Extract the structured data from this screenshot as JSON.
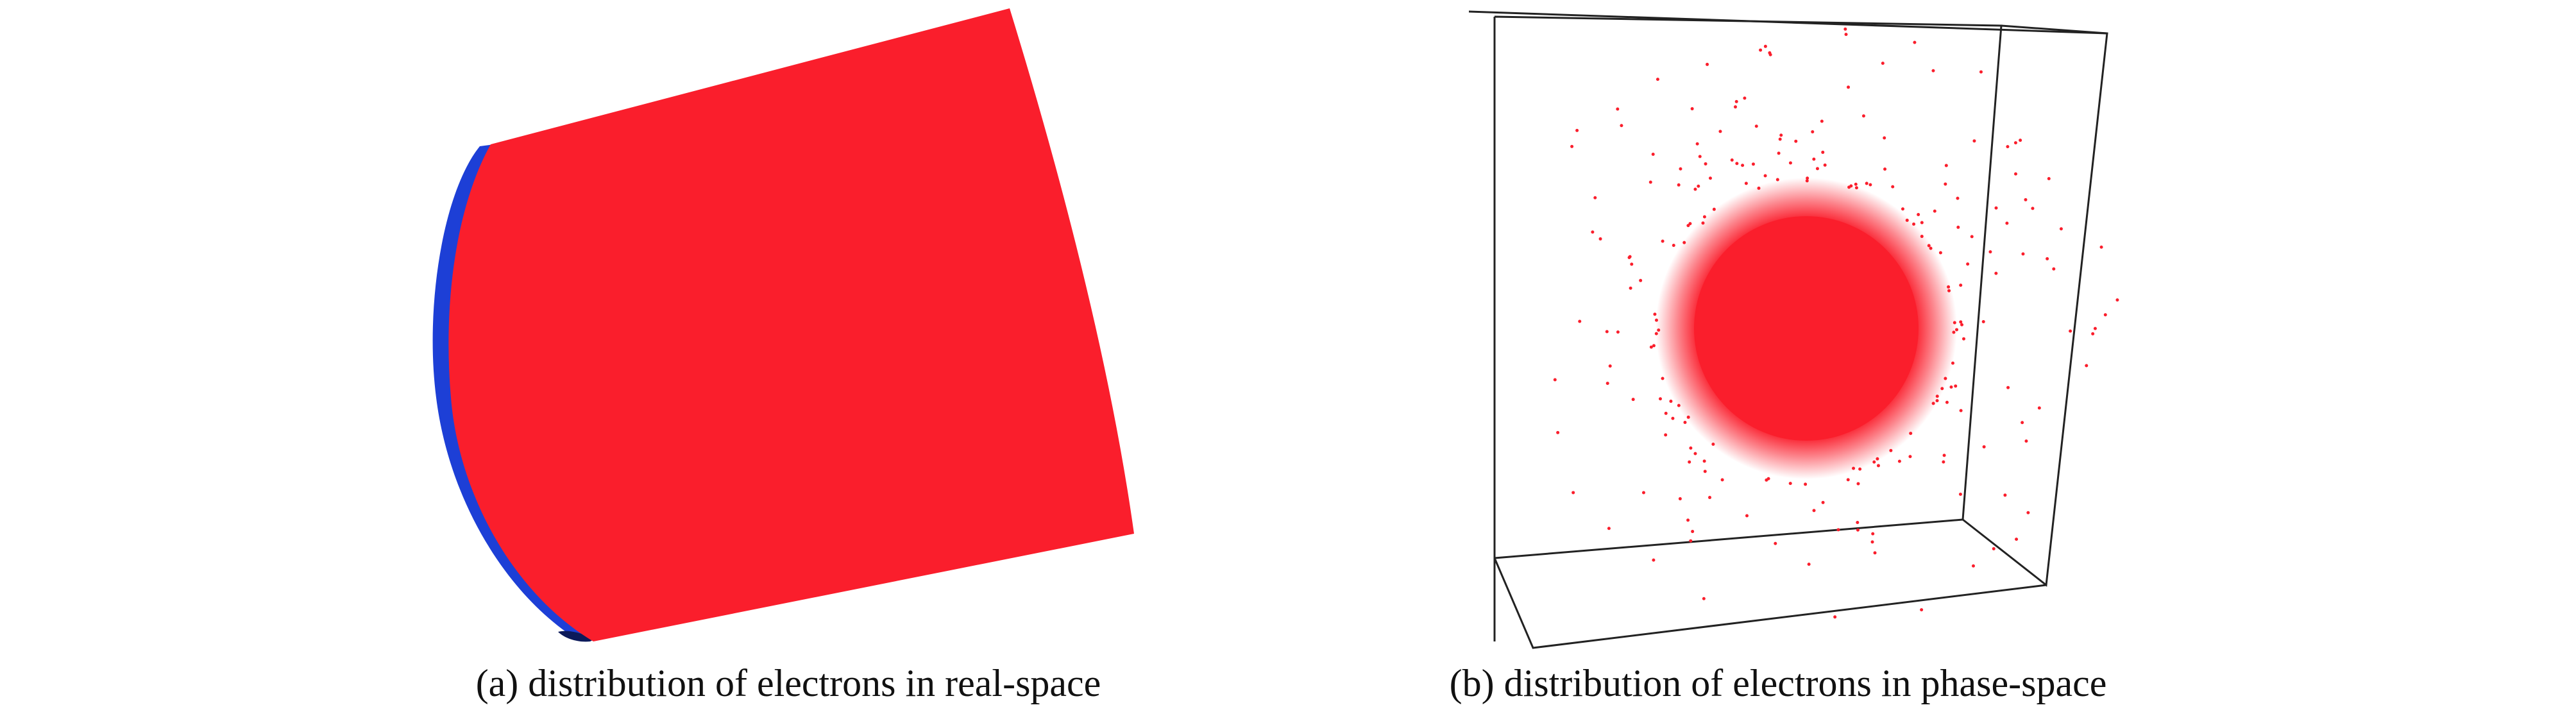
{
  "panels": [
    {
      "caption": "(a) distribution of electrons in real-space"
    },
    {
      "caption": "(b) distribution of electrons in phase-space"
    }
  ]
}
